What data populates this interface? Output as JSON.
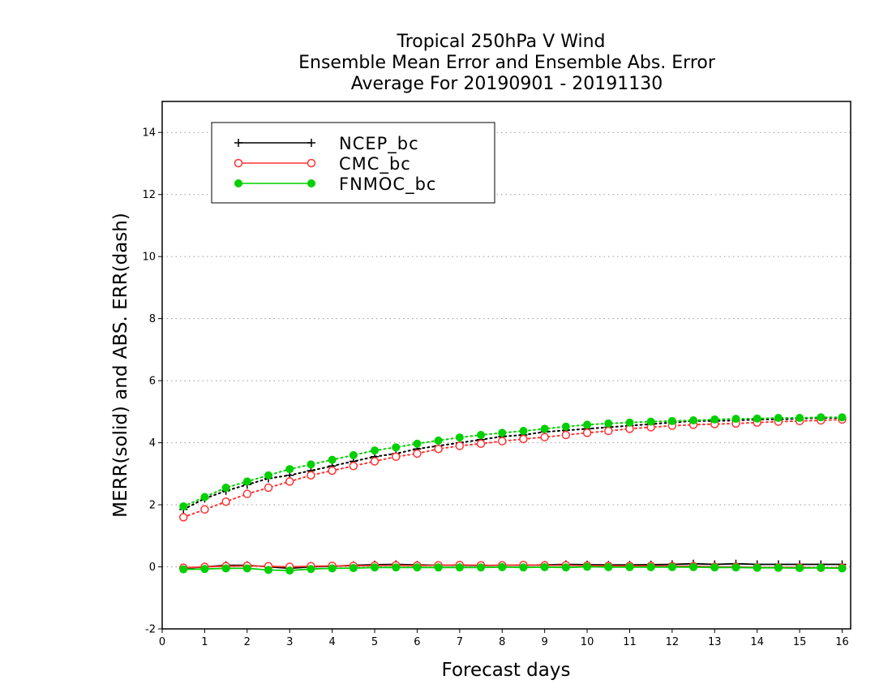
{
  "chart_data": {
    "type": "line",
    "title_lines": [
      "Tropical 250hPa V Wind",
      "Ensemble Mean Error and Ensemble Abs. Error",
      "Average For 20190901 - 20191130"
    ],
    "xlabel": "Forecast days",
    "ylabel": "MERR(solid) and ABS. ERR(dash)",
    "xlim": [
      0,
      16.2
    ],
    "ylim": [
      -2,
      15
    ],
    "xticks": [
      0,
      1,
      2,
      3,
      4,
      5,
      6,
      7,
      8,
      9,
      10,
      11,
      12,
      13,
      14,
      15,
      16
    ],
    "xtick_labels": [
      "0",
      "1",
      "2",
      "3",
      "4",
      "5",
      "6",
      "7",
      "8",
      "9",
      "10",
      "11",
      "12",
      "13",
      "14",
      "15",
      "16"
    ],
    "yticks": [
      -2,
      0,
      2,
      4,
      6,
      8,
      10,
      12,
      14
    ],
    "ytick_labels": [
      "-2",
      "0",
      "2",
      "4",
      "6",
      "8",
      "10",
      "12",
      "14"
    ],
    "grid": "dotted horizontal",
    "legend_position": "top-left",
    "x": [
      0.5,
      1,
      1.5,
      2,
      2.5,
      3,
      3.5,
      4,
      4.5,
      5,
      5.5,
      6,
      6.5,
      7,
      7.5,
      8,
      8.5,
      9,
      9.5,
      10,
      10.5,
      11,
      11.5,
      12,
      12.5,
      13,
      13.5,
      14,
      14.5,
      15,
      15.5,
      16
    ],
    "series": [
      {
        "name": "NCEP_bc",
        "color": "#000000",
        "marker": "plus",
        "merr": [
          -0.05,
          0.0,
          0.05,
          0.05,
          0.0,
          -0.05,
          0.0,
          0.02,
          0.05,
          0.07,
          0.08,
          0.06,
          0.05,
          0.05,
          0.04,
          0.05,
          0.05,
          0.06,
          0.08,
          0.07,
          0.06,
          0.06,
          0.07,
          0.08,
          0.1,
          0.08,
          0.1,
          0.08,
          0.08,
          0.08,
          0.08,
          0.08
        ],
        "abs_err": [
          1.85,
          2.2,
          2.45,
          2.65,
          2.85,
          2.95,
          3.1,
          3.25,
          3.4,
          3.55,
          3.65,
          3.8,
          3.9,
          4.0,
          4.1,
          4.2,
          4.25,
          4.35,
          4.4,
          4.45,
          4.5,
          4.55,
          4.6,
          4.65,
          4.7,
          4.7,
          4.72,
          4.75,
          4.75,
          4.78,
          4.8,
          4.8
        ]
      },
      {
        "name": "CMC_bc",
        "color": "#ff3333",
        "marker": "open-circle",
        "merr": [
          -0.03,
          0.0,
          0.02,
          0.03,
          0.02,
          0.0,
          0.02,
          0.03,
          0.03,
          0.04,
          0.05,
          0.04,
          0.05,
          0.06,
          0.05,
          0.05,
          0.06,
          0.05,
          0.05,
          0.04,
          0.03,
          0.03,
          0.03,
          0.02,
          0.02,
          0.0,
          0.0,
          -0.02,
          -0.02,
          -0.02,
          -0.03,
          -0.03
        ],
        "abs_err": [
          1.6,
          1.85,
          2.1,
          2.35,
          2.55,
          2.75,
          2.95,
          3.1,
          3.25,
          3.4,
          3.55,
          3.65,
          3.8,
          3.9,
          3.97,
          4.05,
          4.12,
          4.18,
          4.25,
          4.32,
          4.38,
          4.45,
          4.5,
          4.55,
          4.58,
          4.6,
          4.62,
          4.65,
          4.68,
          4.7,
          4.72,
          4.75
        ]
      },
      {
        "name": "FNMOC_bc",
        "color": "#00d000",
        "marker": "filled-circle",
        "merr": [
          -0.08,
          -0.07,
          -0.05,
          -0.05,
          -0.1,
          -0.12,
          -0.07,
          -0.05,
          -0.04,
          -0.02,
          -0.02,
          -0.02,
          -0.02,
          -0.02,
          -0.02,
          -0.01,
          -0.02,
          -0.01,
          -0.02,
          0.0,
          -0.01,
          -0.01,
          -0.01,
          -0.01,
          -0.01,
          -0.02,
          -0.02,
          -0.03,
          -0.03,
          -0.04,
          -0.03,
          -0.05
        ],
        "abs_err": [
          1.95,
          2.25,
          2.55,
          2.75,
          2.95,
          3.15,
          3.3,
          3.45,
          3.6,
          3.75,
          3.85,
          3.97,
          4.07,
          4.17,
          4.25,
          4.32,
          4.38,
          4.45,
          4.52,
          4.58,
          4.62,
          4.65,
          4.68,
          4.7,
          4.72,
          4.75,
          4.77,
          4.78,
          4.8,
          4.8,
          4.82,
          4.82
        ]
      }
    ]
  }
}
